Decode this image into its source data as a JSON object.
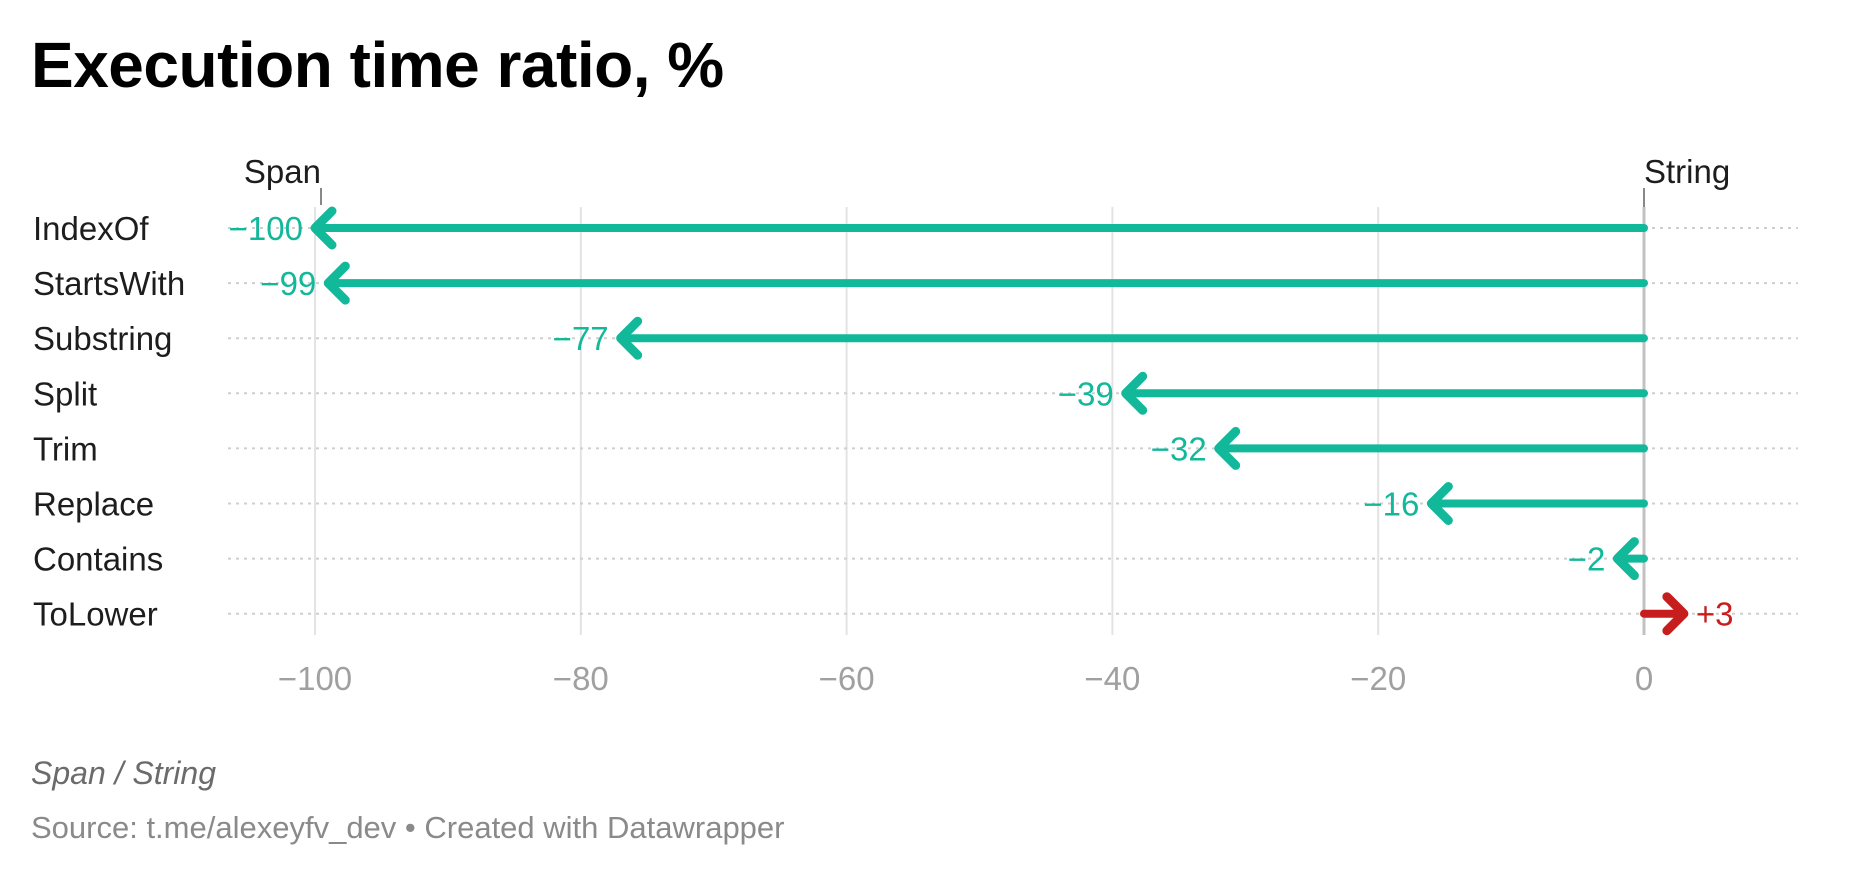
{
  "title": "Execution time ratio, %",
  "notes": "Span / String",
  "source": "Source: t.me/alexeyfv_dev • Created with Datawrapper",
  "colors": {
    "negative": "#12b89a",
    "positive": "#c71e1d",
    "gridline": "#e3e3e3",
    "dotted": "#cfcfcf",
    "zero_line": "#c2c2c2"
  },
  "chart_data": {
    "type": "arrow",
    "title": "Execution time ratio, %",
    "xlabel": "",
    "ylabel": "",
    "start_label": "String",
    "end_label": "Span",
    "categories": [
      "IndexOf",
      "StartsWith",
      "Substring",
      "Split",
      "Trim",
      "Replace",
      "Contains",
      "ToLower"
    ],
    "start_values": [
      0,
      0,
      0,
      0,
      0,
      0,
      0,
      0
    ],
    "values": [
      -100,
      -99,
      -77,
      -39,
      -32,
      -16,
      -2,
      3
    ],
    "value_labels": [
      "−100",
      "−99",
      "−77",
      "−39",
      "−32",
      "−16",
      "−2",
      "+3"
    ],
    "x_ticks": [
      -100,
      -80,
      -60,
      -40,
      -20,
      0
    ],
    "x_tick_labels": [
      "−100",
      "−80",
      "−60",
      "−40",
      "−20",
      "0"
    ],
    "xlim": [
      -106,
      10
    ],
    "grid": true,
    "notes": "Span / String"
  }
}
